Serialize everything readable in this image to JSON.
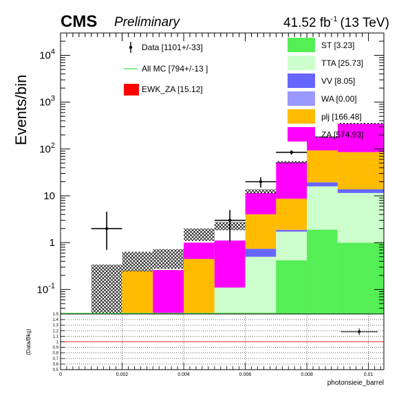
{
  "header": {
    "cms_label": "CMS",
    "preliminary_label": "Preliminary",
    "lumi_label": "41.52 fb",
    "lumi_exp": "-1",
    "energy_label": "(13 TeV)"
  },
  "chart_data": [
    {
      "type": "bar",
      "stacked": true,
      "yscale": "log",
      "ylabel": "Events/bin",
      "xlim": [
        0,
        0.0105
      ],
      "ylim": [
        0.03,
        30000
      ],
      "y_tick_labels": [
        "10^{-1}",
        "1",
        "10",
        "10^{2}",
        "10^{3}",
        "10^{4}"
      ],
      "bin_edges": [
        0.0,
        0.001,
        0.002,
        0.003,
        0.004,
        0.005,
        0.006,
        0.007,
        0.008,
        0.009,
        0.0105
      ],
      "series": [
        {
          "key": "ST",
          "legend": "ST [3.23]",
          "color": "#55ee55",
          "values": [
            0,
            0,
            0,
            0,
            0,
            0,
            0,
            0.42,
            1.9,
            1.0
          ]
        },
        {
          "key": "TTA",
          "legend": "TTA [25.73]",
          "color": "#ccffcc",
          "values": [
            0,
            0,
            0,
            0,
            0,
            0.11,
            0.5,
            1.3,
            14,
            10.5
          ]
        },
        {
          "key": "VV",
          "legend": "VV [8.05]",
          "color": "#6666ff",
          "values": [
            0,
            0,
            0,
            0,
            0,
            0,
            0.24,
            0.15,
            3.5,
            2.3
          ]
        },
        {
          "key": "WA",
          "legend": "WA [0.00]",
          "color": "#9999ff",
          "values": [
            0,
            0,
            0,
            0,
            0,
            0,
            0,
            0,
            0,
            0
          ]
        },
        {
          "key": "plj",
          "legend": "plj [166.48]",
          "color": "#ffbb00",
          "values": [
            0,
            0,
            0.25,
            0,
            0.45,
            0,
            3.3,
            6.8,
            74,
            72
          ]
        },
        {
          "key": "ZA",
          "legend": "ZA [574.93]",
          "color": "#ff00ff",
          "values": [
            0,
            0,
            0,
            0.26,
            0.55,
            1.0,
            7.4,
            43,
            88,
            260
          ]
        }
      ],
      "uncertainty_band": {
        "legend_style": "hatched",
        "totals": [
          0,
          0.17,
          0.44,
          0.5,
          1.55,
          2.3,
          12.5,
          52,
          180,
          350
        ],
        "half_width_frac": [
          0,
          1,
          0.45,
          0.45,
          0.3,
          0.2,
          0.1,
          0.06,
          0.04,
          0.03
        ]
      },
      "data_points": {
        "legend": "Data [1101+/-33]",
        "x": [
          0.0015,
          0.0055,
          0.0065,
          0.0075
        ],
        "x_halfwidth": [
          0.0005,
          0.0005,
          0.0005,
          0.0005
        ],
        "y": [
          2,
          3,
          20,
          85
        ],
        "y_err_low": [
          1.3,
          2.0,
          5,
          9
        ],
        "y_err_high": [
          2.6,
          2.0,
          5,
          9
        ]
      },
      "overlay_lines": [
        {
          "legend": "All MC [794+/-13 ]",
          "color": "#55ee55"
        },
        {
          "legend": "EWK_ZA [15.12]",
          "color": "#ff0000",
          "legend_style": "box"
        }
      ]
    },
    {
      "type": "scatter",
      "ylabel": "(Data/Bkg)",
      "xlabel": "photonsieie_barrel",
      "xlim": [
        0,
        0.0105
      ],
      "ylim": [
        0.5,
        1.5
      ],
      "x_tick_labels": [
        "0",
        "0.002",
        "0.004",
        "0.006",
        "0.008",
        "0.01"
      ],
      "y_tick_labels": [
        "0.5",
        "0.6",
        "0.7",
        "0.8",
        "0.9",
        "1",
        "1.1",
        "1.2",
        "1.3",
        "1.4",
        "1.5"
      ],
      "reference_line": 1.0,
      "reference_color": "#ff0000",
      "points": [
        {
          "x": 0.0097,
          "y": 1.18,
          "x_halfwidth": 0.0006,
          "y_err": 0.06
        }
      ]
    }
  ]
}
